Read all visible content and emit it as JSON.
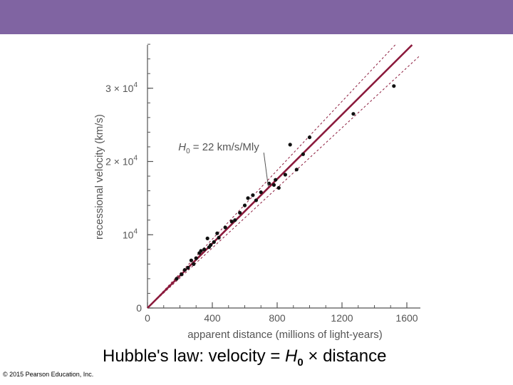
{
  "header": {
    "color": "#8064a2"
  },
  "chart_data": {
    "type": "scatter",
    "title": "",
    "xlabel": "apparent distance (millions of light-years)",
    "ylabel": "recessional velocity (km/s)",
    "xlim": [
      0,
      1650
    ],
    "ylim": [
      0,
      36000
    ],
    "x_ticks": [
      {
        "value": 0,
        "label": "0"
      },
      {
        "value": 400,
        "label": "400"
      },
      {
        "value": 800,
        "label": "800"
      },
      {
        "value": 1200,
        "label": "1200"
      },
      {
        "value": 1600,
        "label": "1600"
      }
    ],
    "y_ticks": [
      {
        "value": 0,
        "label": "0",
        "exp": ""
      },
      {
        "value": 10000,
        "label": "10",
        "exp": "4"
      },
      {
        "value": 20000,
        "label": "2 × 10",
        "exp": "4"
      },
      {
        "value": 30000,
        "label": "3 × 10",
        "exp": "4"
      }
    ],
    "fit_line": {
      "slope": 22,
      "color": "#8b1a3c"
    },
    "bound_lines": {
      "slopes": [
        20.5,
        23.5
      ],
      "color": "#8b1a3c"
    },
    "annotation": {
      "text_main": "H",
      "text_sub": "0",
      "text_rest": " = 22 km/s/Mly",
      "x": 190,
      "y": 21500,
      "arrow_to_x": 745,
      "arrow_to_y": 16600
    },
    "points": [
      [
        180,
        4000
      ],
      [
        210,
        4600
      ],
      [
        230,
        5200
      ],
      [
        250,
        5500
      ],
      [
        270,
        6500
      ],
      [
        285,
        6000
      ],
      [
        300,
        6800
      ],
      [
        320,
        7500
      ],
      [
        330,
        7800
      ],
      [
        350,
        8000
      ],
      [
        370,
        9500
      ],
      [
        380,
        8300
      ],
      [
        390,
        8600
      ],
      [
        410,
        9000
      ],
      [
        430,
        10200
      ],
      [
        440,
        9600
      ],
      [
        480,
        11000
      ],
      [
        520,
        11800
      ],
      [
        540,
        12000
      ],
      [
        570,
        13000
      ],
      [
        600,
        14000
      ],
      [
        620,
        15000
      ],
      [
        650,
        15400
      ],
      [
        670,
        14700
      ],
      [
        700,
        15800
      ],
      [
        750,
        17000
      ],
      [
        780,
        16800
      ],
      [
        790,
        17500
      ],
      [
        810,
        16400
      ],
      [
        850,
        18200
      ],
      [
        880,
        22300
      ],
      [
        920,
        18900
      ],
      [
        960,
        21000
      ],
      [
        1000,
        23300
      ],
      [
        1270,
        26500
      ],
      [
        1520,
        30300
      ]
    ]
  },
  "caption": {
    "prefix": "Hubble's law: velocity = ",
    "h": "H",
    "sub": "0",
    "suffix": " × distance"
  },
  "copyright": "© 2015 Pearson Education, Inc."
}
